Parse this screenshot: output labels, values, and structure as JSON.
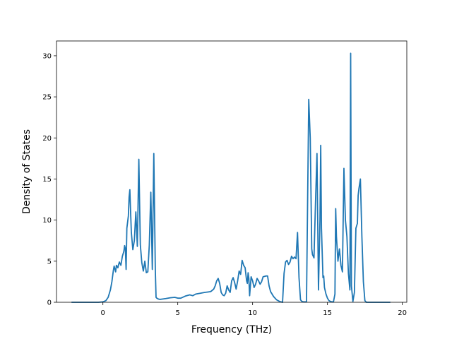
{
  "chart_data": {
    "type": "line",
    "title": "",
    "xlabel": "Frequency (THz)",
    "ylabel": "Density of States",
    "xlim": [
      -3.1,
      20.3
    ],
    "ylim": [
      0,
      31.8
    ],
    "xticks": [
      0,
      5,
      10,
      15,
      20
    ],
    "yticks": [
      0,
      5,
      10,
      15,
      20,
      25,
      30
    ],
    "grid": false,
    "legend": "none",
    "series": [
      {
        "color": "#1f77b4",
        "x": [
          -2.1,
          -1.0,
          -0.3,
          0.0,
          0.2,
          0.35,
          0.5,
          0.6,
          0.7,
          0.75,
          0.85,
          0.9,
          1.0,
          1.05,
          1.1,
          1.2,
          1.3,
          1.4,
          1.45,
          1.5,
          1.55,
          1.6,
          1.7,
          1.75,
          1.8,
          1.85,
          1.9,
          2.0,
          2.1,
          2.2,
          2.3,
          2.4,
          2.5,
          2.6,
          2.7,
          2.8,
          2.9,
          3.0,
          3.1,
          3.2,
          3.3,
          3.4,
          3.5,
          3.55,
          3.6,
          3.7,
          3.8,
          4.0,
          4.2,
          4.5,
          4.8,
          5.0,
          5.2,
          5.5,
          5.8,
          6.0,
          6.2,
          6.5,
          6.8,
          7.0,
          7.2,
          7.4,
          7.5,
          7.6,
          7.7,
          7.8,
          7.9,
          8.0,
          8.1,
          8.2,
          8.3,
          8.4,
          8.5,
          8.6,
          8.7,
          8.8,
          8.9,
          9.0,
          9.1,
          9.2,
          9.3,
          9.4,
          9.5,
          9.6,
          9.65,
          9.7,
          9.75,
          9.8,
          9.9,
          10.0,
          10.1,
          10.2,
          10.3,
          10.4,
          10.5,
          10.6,
          10.7,
          10.9,
          11.0,
          11.1,
          11.2,
          11.4,
          11.6,
          11.8,
          12.0,
          12.1,
          12.2,
          12.3,
          12.4,
          12.5,
          12.6,
          12.7,
          12.8,
          12.9,
          13.0,
          13.1,
          13.2,
          13.3,
          13.4,
          13.6,
          13.75,
          13.85,
          13.95,
          14.0,
          14.1,
          14.2,
          14.3,
          14.4,
          14.5,
          14.55,
          14.6,
          14.7,
          14.75,
          14.8,
          14.9,
          15.0,
          15.1,
          15.2,
          15.3,
          15.4,
          15.5,
          15.55,
          15.6,
          15.7,
          15.75,
          15.8,
          15.9,
          16.0,
          16.1,
          16.2,
          16.3,
          16.4,
          16.5,
          16.55,
          16.6,
          16.7,
          16.8,
          16.9,
          17.0,
          17.05,
          17.1,
          17.2,
          17.3,
          17.4,
          17.5,
          17.6,
          17.8,
          18.0,
          19.2
        ],
        "y": [
          0.0,
          0.0,
          0.0,
          0.05,
          0.2,
          0.6,
          1.5,
          2.5,
          3.9,
          4.4,
          3.7,
          4.5,
          4.2,
          4.6,
          4.9,
          4.5,
          5.6,
          6.2,
          6.9,
          6.5,
          4.0,
          9.0,
          10.5,
          12.8,
          13.7,
          11.0,
          8.5,
          6.4,
          7.5,
          11.0,
          6.8,
          17.4,
          7.0,
          4.8,
          3.8,
          5.0,
          3.6,
          3.7,
          7.0,
          13.4,
          4.0,
          18.1,
          4.0,
          0.6,
          0.5,
          0.4,
          0.35,
          0.4,
          0.45,
          0.55,
          0.6,
          0.5,
          0.5,
          0.75,
          0.9,
          0.8,
          1.0,
          1.1,
          1.2,
          1.25,
          1.3,
          1.6,
          2.0,
          2.6,
          2.9,
          2.3,
          1.2,
          0.9,
          0.8,
          1.1,
          2.0,
          1.5,
          1.2,
          2.6,
          3.0,
          2.4,
          1.6,
          2.6,
          3.8,
          3.4,
          5.1,
          4.5,
          4.2,
          2.6,
          2.3,
          3.6,
          2.9,
          0.8,
          3.1,
          2.6,
          1.8,
          2.2,
          2.9,
          2.6,
          2.2,
          2.5,
          3.1,
          3.2,
          3.2,
          2.0,
          1.3,
          0.7,
          0.3,
          0.1,
          0.0,
          3.5,
          4.9,
          5.1,
          4.6,
          4.9,
          5.6,
          5.3,
          5.5,
          5.3,
          8.5,
          3.0,
          0.3,
          0.1,
          0.05,
          0.05,
          24.7,
          20.0,
          6.5,
          5.8,
          5.4,
          12.0,
          18.1,
          1.5,
          10.0,
          19.1,
          9.0,
          3.0,
          3.2,
          1.8,
          1.0,
          0.5,
          0.2,
          0.1,
          0.05,
          0.05,
          1.0,
          11.4,
          8.0,
          5.0,
          5.8,
          6.5,
          4.5,
          3.7,
          16.3,
          10.0,
          8.0,
          3.5,
          1.5,
          30.3,
          2.0,
          0.1,
          1.2,
          9.0,
          9.6,
          13.0,
          13.8,
          15.0,
          8.0,
          2.5,
          0.2,
          0.0,
          0.0,
          0.0,
          0.0
        ]
      }
    ]
  }
}
